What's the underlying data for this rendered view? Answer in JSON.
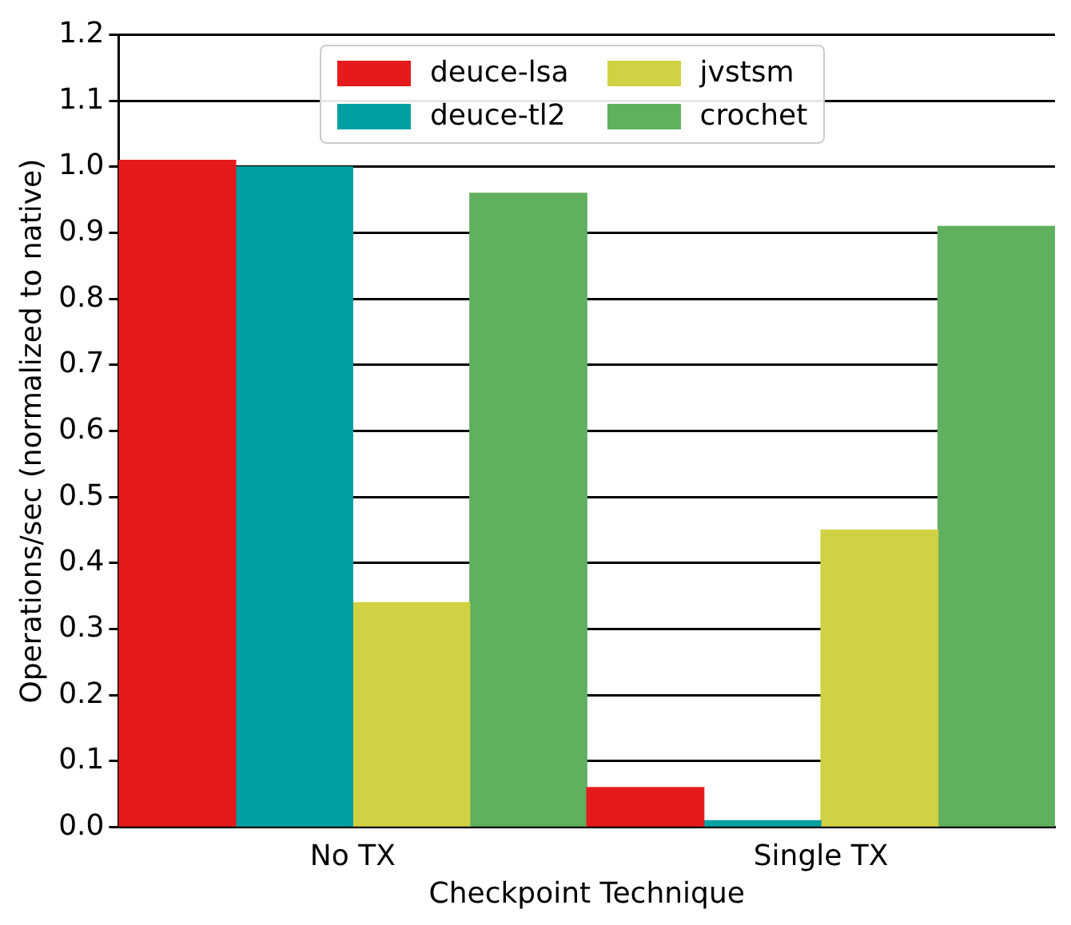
{
  "chart_data": {
    "type": "bar",
    "xlabel": "Checkpoint Technique",
    "ylabel": "Operations/sec (normalized to native)",
    "categories": [
      "No TX",
      "Single TX"
    ],
    "series": [
      {
        "name": "deuce-lsa",
        "color": "#e41a1c",
        "values": [
          1.01,
          0.06
        ]
      },
      {
        "name": "deuce-tl2",
        "color": "#00a0a0",
        "values": [
          1.0,
          0.01
        ]
      },
      {
        "name": "jvstsm",
        "color": "#d1d144",
        "values": [
          0.34,
          0.45
        ]
      },
      {
        "name": "crochet",
        "color": "#60b060",
        "values": [
          0.96,
          0.91
        ]
      }
    ],
    "ylim": [
      0,
      1.2
    ],
    "yticks": [
      {
        "value": 0,
        "label": "0.0"
      },
      0.1,
      0.2,
      0.3,
      0.4,
      0.5,
      0.6,
      0.7,
      0.8,
      0.9,
      {
        "value": 1,
        "label": "1.0"
      },
      1.1,
      1.2
    ],
    "grid": "y",
    "legend": "top"
  }
}
